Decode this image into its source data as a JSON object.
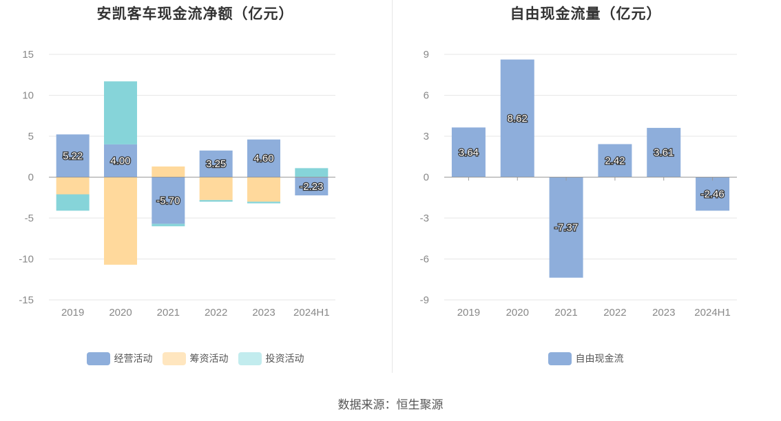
{
  "colors": {
    "operating": "#8eaedb",
    "financing": "#ffd99c",
    "investing": "#86d4d9",
    "free_cash_flow": "#8eaedb",
    "legend_financing": "#ffe6bf",
    "legend_investing": "#c2ecee",
    "grid": "#e6e6e6",
    "axis": "#999999"
  },
  "source_text": "数据来源：恒生聚源",
  "chart_data": [
    {
      "type": "bar",
      "stacked": true,
      "title": "安凯客车现金流净额（亿元）",
      "categories": [
        "2019",
        "2020",
        "2021",
        "2022",
        "2023",
        "2024H1"
      ],
      "ylim": [
        -15,
        15
      ],
      "yticks": [
        15,
        10,
        5,
        0,
        -5,
        -10,
        -15
      ],
      "ytick_labels": [
        "15",
        "10",
        "5",
        "0",
        "-5",
        "-10",
        "-15"
      ],
      "grid": true,
      "legend_position": "bottom",
      "series": [
        {
          "name": "经营活动",
          "values": [
            5.22,
            4.0,
            -5.7,
            3.25,
            4.6,
            -2.23
          ],
          "labels": [
            "5.22",
            "4.00",
            "-5.70",
            "3.25",
            "4.60",
            "-2.23"
          ]
        },
        {
          "name": "筹资活动",
          "values": [
            -2.1,
            -10.7,
            1.3,
            -2.8,
            -3.0,
            0
          ]
        },
        {
          "name": "投资活动",
          "values": [
            -2.0,
            7.7,
            -0.3,
            -0.2,
            -0.2,
            1.1
          ]
        }
      ]
    },
    {
      "type": "bar",
      "title": "自由现金流量（亿元）",
      "categories": [
        "2019",
        "2020",
        "2021",
        "2022",
        "2023",
        "2024H1"
      ],
      "ylim": [
        -9,
        9
      ],
      "yticks": [
        9,
        6,
        3,
        0,
        -3,
        -6,
        -9
      ],
      "ytick_labels": [
        "9",
        "6",
        "3",
        "0",
        "-3",
        "-6",
        "-9"
      ],
      "grid": true,
      "legend_position": "bottom",
      "series": [
        {
          "name": "自由现金流",
          "values": [
            3.64,
            8.62,
            -7.37,
            2.42,
            3.61,
            -2.46
          ],
          "labels": [
            "3.64",
            "8.62",
            "-7.37",
            "2.42",
            "3.61",
            "-2.46"
          ]
        }
      ]
    }
  ]
}
